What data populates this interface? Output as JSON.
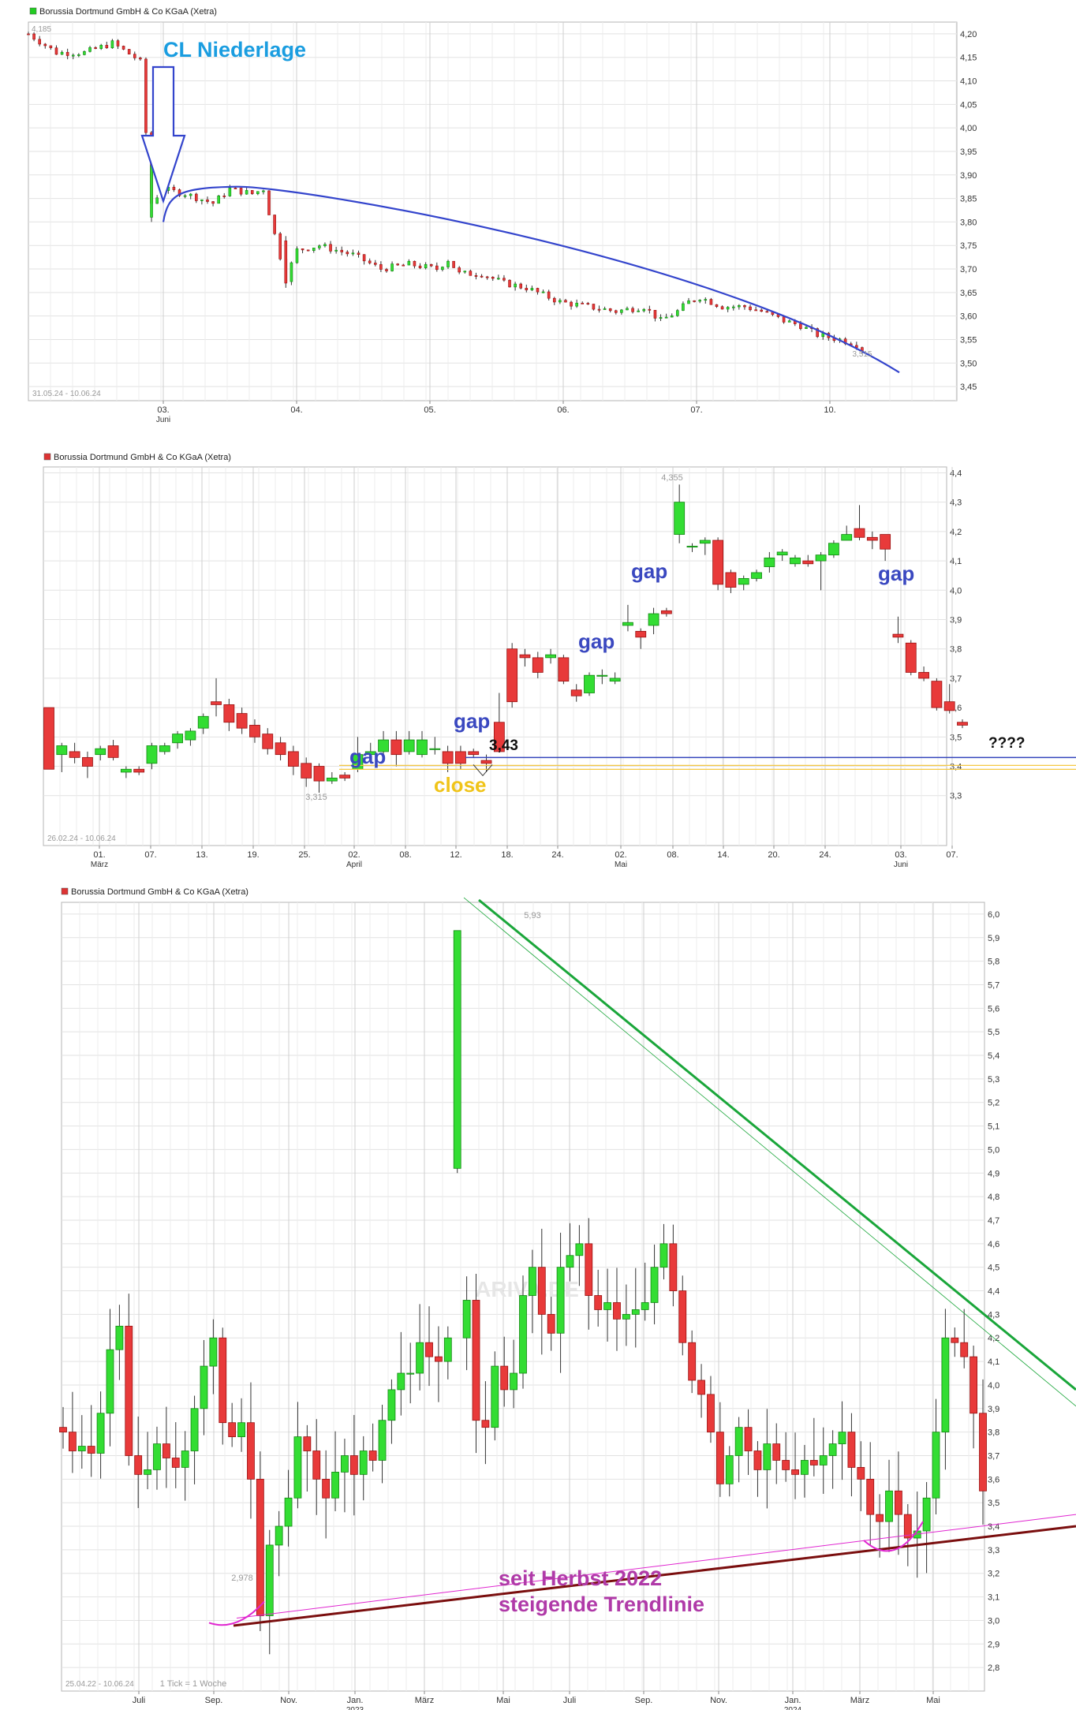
{
  "chart_data": [
    {
      "type": "candlestick",
      "title": "Borussia Dortmund GmbH & Co KGaA (Xetra)",
      "legend_color": "#22cc22",
      "date_range": "31.05.24 - 10.06.24",
      "y_ticks": [
        "4,20",
        "4,15",
        "4,10",
        "4,05",
        "4,00",
        "3,95",
        "3,90",
        "3,85",
        "3,80",
        "3,75",
        "3,70",
        "3,65",
        "3,60",
        "3,55",
        "3,50",
        "3,45"
      ],
      "ylim": [
        3.42,
        4.225
      ],
      "x_ticks": [
        {
          "l1": "03.",
          "l2": "Juni"
        },
        {
          "l1": "04.",
          "l2": ""
        },
        {
          "l1": "05.",
          "l2": ""
        },
        {
          "l1": "06.",
          "l2": ""
        },
        {
          "l1": "07.",
          "l2": ""
        },
        {
          "l1": "10.",
          "l2": ""
        }
      ],
      "high_label": "4,185",
      "low_label": "3,515",
      "annotation": "CL Niederlage",
      "path": [
        [
          0,
          4.2
        ],
        [
          10,
          4.16
        ],
        [
          20,
          4.16
        ],
        [
          30,
          4.18
        ],
        [
          38,
          4.15
        ],
        [
          40,
          4.14
        ],
        [
          44,
          3.84
        ],
        [
          48,
          3.87
        ],
        [
          56,
          3.86
        ],
        [
          66,
          3.84
        ],
        [
          72,
          3.87
        ],
        [
          80,
          3.86
        ],
        [
          84,
          3.87
        ],
        [
          86,
          3.82
        ],
        [
          92,
          3.68
        ],
        [
          96,
          3.74
        ],
        [
          104,
          3.75
        ],
        [
          116,
          3.73
        ],
        [
          126,
          3.7
        ],
        [
          136,
          3.71
        ],
        [
          146,
          3.7
        ],
        [
          150,
          3.72
        ],
        [
          154,
          3.69
        ],
        [
          162,
          3.69
        ],
        [
          170,
          3.67
        ],
        [
          178,
          3.66
        ],
        [
          190,
          3.63
        ],
        [
          200,
          3.62
        ],
        [
          210,
          3.61
        ],
        [
          220,
          3.62
        ],
        [
          226,
          3.59
        ],
        [
          232,
          3.61
        ],
        [
          236,
          3.63
        ],
        [
          240,
          3.64
        ],
        [
          248,
          3.62
        ],
        [
          256,
          3.62
        ],
        [
          262,
          3.61
        ],
        [
          270,
          3.59
        ],
        [
          276,
          3.58
        ],
        [
          282,
          3.56
        ],
        [
          290,
          3.55
        ],
        [
          296,
          3.54
        ],
        [
          300,
          3.52
        ]
      ],
      "curve": [
        [
          3.84
        ],
        [
          3.87
        ],
        [
          3.86
        ],
        [
          3.55
        ],
        [
          3.48
        ]
      ]
    },
    {
      "type": "candlestick",
      "title": "Borussia Dortmund GmbH & Co KGaA (Xetra)",
      "legend_color": "#dd3333",
      "date_range": "26.02.24 - 10.06.24",
      "y_ticks": [
        "4,4",
        "4,3",
        "4,2",
        "4,1",
        "4,0",
        "3,9",
        "3,8",
        "3,7",
        "3,6",
        "3,5",
        "3,4",
        "3,3"
      ],
      "ylim": [
        3.13,
        4.42
      ],
      "x_ticks": [
        {
          "l1": "01.",
          "l2": "März"
        },
        {
          "l1": "07.",
          "l2": ""
        },
        {
          "l1": "13.",
          "l2": ""
        },
        {
          "l1": "19.",
          "l2": ""
        },
        {
          "l1": "25.",
          "l2": ""
        },
        {
          "l1": "02.",
          "l2": "April"
        },
        {
          "l1": "08.",
          "l2": ""
        },
        {
          "l1": "12.",
          "l2": ""
        },
        {
          "l1": "18.",
          "l2": ""
        },
        {
          "l1": "24.",
          "l2": ""
        },
        {
          "l1": "02.",
          "l2": "Mai"
        },
        {
          "l1": "08.",
          "l2": ""
        },
        {
          "l1": "14.",
          "l2": ""
        },
        {
          "l1": "20.",
          "l2": ""
        },
        {
          "l1": "24.",
          "l2": ""
        },
        {
          "l1": "03.",
          "l2": "Juni"
        },
        {
          "l1": "07.",
          "l2": ""
        }
      ],
      "high_label": "4,355",
      "low_label": "3,315",
      "gap_label": "gap",
      "close_label": "close",
      "level_label": "3,43",
      "question_label": "????",
      "level_value": 3.43,
      "close_value": 3.395,
      "candles": [
        [
          3.6,
          3.39,
          3.6,
          3.39
        ],
        [
          3.44,
          3.47,
          3.48,
          3.38
        ],
        [
          3.45,
          3.43,
          3.48,
          3.41
        ],
        [
          3.43,
          3.4,
          3.45,
          3.36
        ],
        [
          3.44,
          3.46,
          3.47,
          3.42
        ],
        [
          3.47,
          3.43,
          3.49,
          3.42
        ],
        [
          3.38,
          3.39,
          3.4,
          3.36
        ],
        [
          3.39,
          3.38,
          3.4,
          3.37
        ],
        [
          3.41,
          3.47,
          3.48,
          3.39
        ],
        [
          3.45,
          3.47,
          3.48,
          3.44
        ],
        [
          3.48,
          3.51,
          3.52,
          3.46
        ],
        [
          3.49,
          3.52,
          3.53,
          3.47
        ],
        [
          3.53,
          3.57,
          3.58,
          3.51
        ],
        [
          3.62,
          3.61,
          3.7,
          3.57
        ],
        [
          3.61,
          3.55,
          3.63,
          3.52
        ],
        [
          3.58,
          3.53,
          3.6,
          3.51
        ],
        [
          3.54,
          3.5,
          3.56,
          3.48
        ],
        [
          3.51,
          3.46,
          3.53,
          3.44
        ],
        [
          3.48,
          3.44,
          3.5,
          3.42
        ],
        [
          3.45,
          3.4,
          3.47,
          3.37
        ],
        [
          3.41,
          3.36,
          3.43,
          3.33
        ],
        [
          3.4,
          3.35,
          3.41,
          3.31
        ],
        [
          3.35,
          3.36,
          3.38,
          3.34
        ],
        [
          3.37,
          3.36,
          3.38,
          3.35
        ],
        [
          3.39,
          3.44,
          3.5,
          3.38
        ],
        [
          3.44,
          3.45,
          3.48,
          3.41
        ],
        [
          3.45,
          3.49,
          3.52,
          3.44
        ],
        [
          3.49,
          3.44,
          3.52,
          3.4
        ],
        [
          3.45,
          3.49,
          3.52,
          3.44
        ],
        [
          3.44,
          3.49,
          3.52,
          3.43
        ],
        [
          3.46,
          3.46,
          3.5,
          3.44
        ],
        [
          3.45,
          3.41,
          3.47,
          3.38
        ],
        [
          3.45,
          3.41,
          3.47,
          3.39
        ],
        [
          3.45,
          3.44,
          3.46,
          3.43
        ],
        [
          3.42,
          3.41,
          3.44,
          3.38
        ],
        [
          3.55,
          3.45,
          3.65,
          3.47
        ],
        [
          3.8,
          3.62,
          3.82,
          3.6
        ],
        [
          3.78,
          3.77,
          3.8,
          3.74
        ],
        [
          3.77,
          3.72,
          3.79,
          3.7
        ],
        [
          3.77,
          3.78,
          3.8,
          3.75
        ],
        [
          3.77,
          3.69,
          3.78,
          3.68
        ],
        [
          3.66,
          3.64,
          3.68,
          3.62
        ],
        [
          3.65,
          3.71,
          3.72,
          3.64
        ],
        [
          3.71,
          3.71,
          3.73,
          3.68
        ],
        [
          3.69,
          3.7,
          3.72,
          3.68
        ],
        [
          3.88,
          3.89,
          3.95,
          3.86
        ],
        [
          3.86,
          3.84,
          3.87,
          3.8
        ],
        [
          3.88,
          3.92,
          3.94,
          3.85
        ],
        [
          3.93,
          3.92,
          3.94,
          3.91
        ],
        [
          4.19,
          4.3,
          4.36,
          4.16
        ],
        [
          4.15,
          4.15,
          4.16,
          4.13
        ],
        [
          4.16,
          4.17,
          4.18,
          4.12
        ],
        [
          4.17,
          4.02,
          4.18,
          4.0
        ],
        [
          4.06,
          4.01,
          4.07,
          3.99
        ],
        [
          4.02,
          4.04,
          4.05,
          4.0
        ],
        [
          4.04,
          4.06,
          4.07,
          4.03
        ],
        [
          4.08,
          4.11,
          4.13,
          4.06
        ],
        [
          4.12,
          4.13,
          4.14,
          4.1
        ],
        [
          4.09,
          4.11,
          4.12,
          4.08
        ],
        [
          4.1,
          4.09,
          4.12,
          4.08
        ],
        [
          4.1,
          4.12,
          4.13,
          4.0
        ],
        [
          4.12,
          4.16,
          4.17,
          4.11
        ],
        [
          4.17,
          4.19,
          4.22,
          4.17
        ],
        [
          4.21,
          4.18,
          4.29,
          4.17
        ],
        [
          4.18,
          4.17,
          4.2,
          4.14
        ],
        [
          4.19,
          4.14,
          4.19,
          4.1
        ],
        [
          3.85,
          3.84,
          3.91,
          3.82
        ],
        [
          3.82,
          3.72,
          3.83,
          3.71
        ],
        [
          3.72,
          3.7,
          3.74,
          3.69
        ],
        [
          3.69,
          3.6,
          3.7,
          3.59
        ],
        [
          3.62,
          3.59,
          3.68,
          3.58
        ],
        [
          3.55,
          3.54,
          3.56,
          3.53
        ]
      ]
    },
    {
      "type": "candlestick",
      "title": "Borussia Dortmund GmbH & Co KGaA (Xetra)",
      "legend_color": "#dd3333",
      "date_range": "25.04.22 - 10.06.24",
      "tick_note": "1 Tick = 1 Woche",
      "y_ticks": [
        "6,0",
        "5,9",
        "5,8",
        "5,7",
        "5,6",
        "5,5",
        "5,4",
        "5,3",
        "5,2",
        "5,1",
        "5,0",
        "4,9",
        "4,8",
        "4,7",
        "4,6",
        "4,5",
        "4,4",
        "4,3",
        "4,2",
        "4,1",
        "4,0",
        "3,9",
        "3,8",
        "3,7",
        "3,6",
        "3,5",
        "3,4",
        "3,3",
        "3,2",
        "3,1",
        "3,0",
        "2,9",
        "2,8"
      ],
      "ylim": [
        2.7,
        6.05
      ],
      "x_ticks": [
        {
          "l1": "Juli",
          "l2": ""
        },
        {
          "l1": "Sep.",
          "l2": ""
        },
        {
          "l1": "Nov.",
          "l2": ""
        },
        {
          "l1": "Jan.",
          "l2": "2023"
        },
        {
          "l1": "März",
          "l2": ""
        },
        {
          "l1": "Mai",
          "l2": ""
        },
        {
          "l1": "Juli",
          "l2": ""
        },
        {
          "l1": "Sep.",
          "l2": ""
        },
        {
          "l1": "Nov.",
          "l2": ""
        },
        {
          "l1": "Jan.",
          "l2": "2024"
        },
        {
          "l1": "März",
          "l2": ""
        },
        {
          "l1": "Mai",
          "l2": ""
        }
      ],
      "high_label": "5,93",
      "low_label": "2,978",
      "watermark": "ARIVA.DE",
      "trend_note": [
        "seit Herbst 2022",
        "steigende Trendlinie"
      ],
      "closes": [
        3.8,
        3.72,
        3.74,
        3.71,
        3.88,
        4.15,
        4.25,
        3.7,
        3.62,
        3.64,
        3.75,
        3.69,
        3.65,
        3.72,
        3.9,
        4.08,
        4.2,
        3.84,
        3.78,
        3.84,
        3.6,
        3.02,
        3.32,
        3.4,
        3.52,
        3.78,
        3.72,
        3.6,
        3.52,
        3.63,
        3.7,
        3.62,
        3.72,
        3.68,
        3.85,
        3.98,
        4.05,
        4.05,
        4.18,
        4.12,
        4.1,
        4.2,
        4.36,
        3.85,
        3.82,
        4.08,
        3.98,
        4.05,
        4.38,
        4.5,
        4.3,
        4.22,
        4.5,
        4.55,
        4.6,
        4.38,
        4.32,
        4.35,
        4.28,
        4.3,
        4.32,
        4.35,
        4.5,
        4.6,
        4.4,
        4.18,
        4.02,
        3.96,
        3.8,
        3.58,
        3.7,
        3.82,
        3.72,
        3.64,
        3.75,
        3.68,
        3.64,
        3.62,
        3.68,
        3.66,
        3.7,
        3.75,
        3.8,
        3.65,
        3.6,
        3.45,
        3.42,
        3.55,
        3.45,
        3.35,
        3.38,
        3.52,
        3.8,
        4.2,
        4.18,
        4.12,
        3.88,
        3.55
      ],
      "spike_candle": [
        4.92,
        5.93,
        4.9,
        5.93
      ],
      "resistance_points": [
        [
          4.28,
          5.95
        ],
        [
          4.93,
          4.27
        ]
      ],
      "support_points": [
        [
          2.978
        ],
        [
          3.33
        ]
      ]
    }
  ]
}
